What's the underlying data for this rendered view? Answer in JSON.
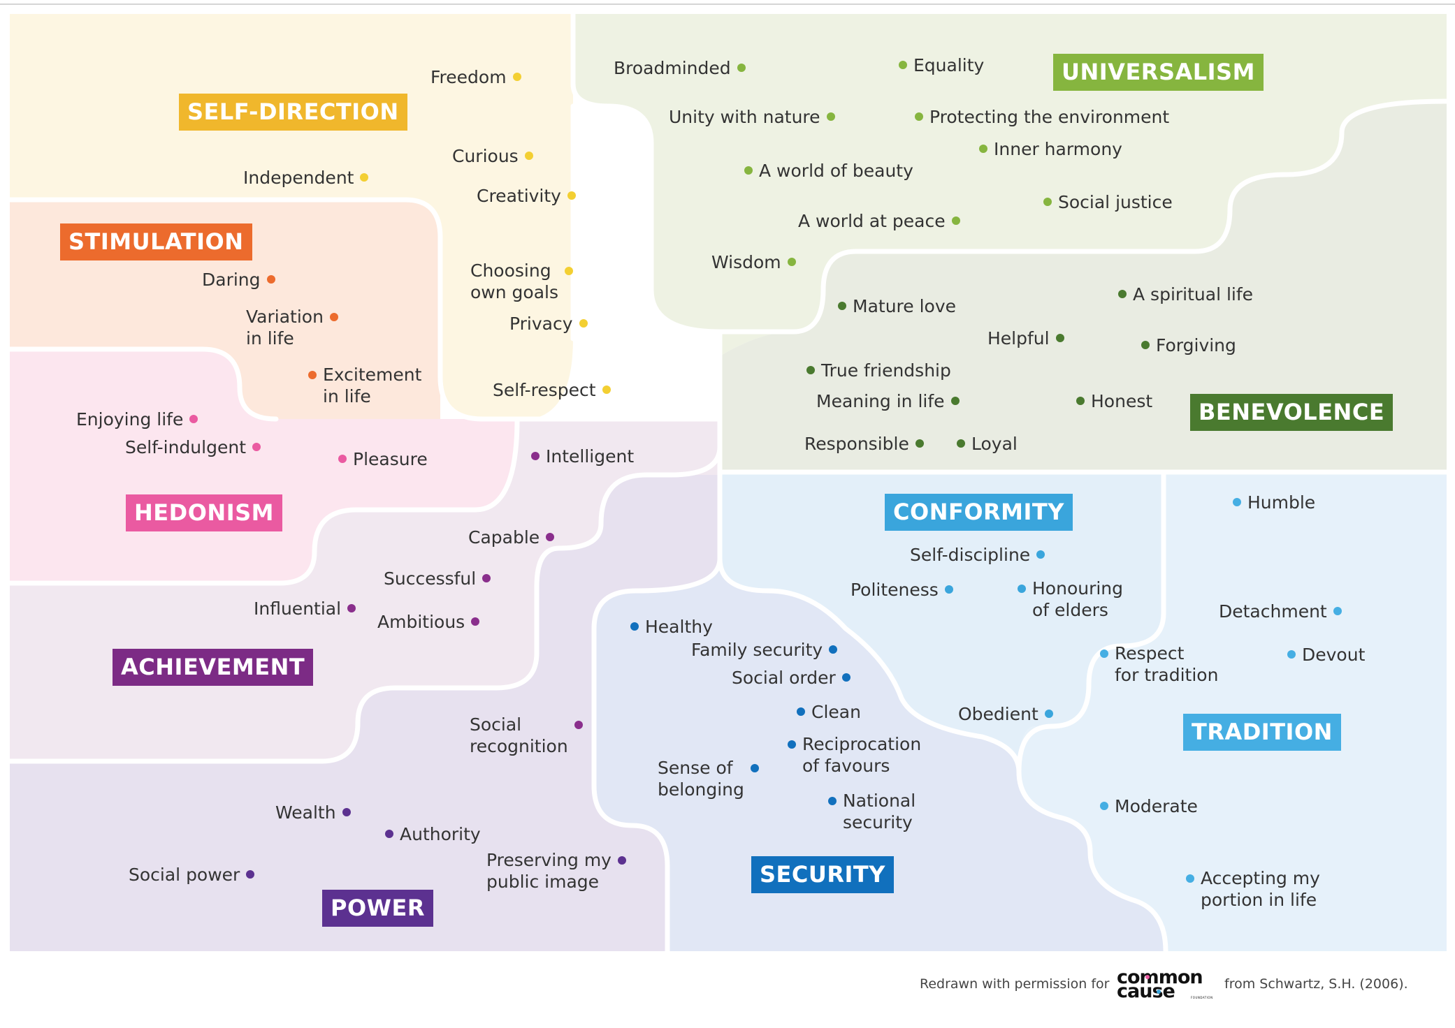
{
  "regions": [
    {
      "key": "self_direction",
      "label": "SELF-DIRECTION",
      "bg": "#fdf6e2",
      "badge": "#f0b72c",
      "dot": "#f3cf32",
      "items": [
        {
          "text": "Freedom"
        },
        {
          "text": "Independent"
        },
        {
          "text": "Curious"
        },
        {
          "text": "Creativity"
        },
        {
          "text": "Choosing\nown goals"
        },
        {
          "text": "Privacy"
        },
        {
          "text": "Self-respect"
        }
      ]
    },
    {
      "key": "stimulation",
      "label": "STIMULATION",
      "bg": "#fde8dc",
      "badge": "#ec6b2d",
      "dot": "#ec6b2d",
      "items": [
        {
          "text": "Daring"
        },
        {
          "text": "Variation\nin life"
        },
        {
          "text": "Excitement\nin life"
        }
      ]
    },
    {
      "key": "hedonism",
      "label": "HEDONISM",
      "bg": "#fce6ef",
      "badge": "#ea5aa1",
      "dot": "#ea5aa1",
      "items": [
        {
          "text": "Enjoying life"
        },
        {
          "text": "Self-indulgent"
        },
        {
          "text": "Pleasure"
        }
      ]
    },
    {
      "key": "achievement",
      "label": "ACHIEVEMENT",
      "bg": "#f1e8f0",
      "badge": "#7c2b85",
      "dot": "#8a2e8c",
      "items": [
        {
          "text": "Intelligent"
        },
        {
          "text": "Capable"
        },
        {
          "text": "Successful"
        },
        {
          "text": "Influential"
        },
        {
          "text": "Ambitious"
        },
        {
          "text": "Social\nrecognition"
        }
      ]
    },
    {
      "key": "power",
      "label": "POWER",
      "bg": "#e7e1ef",
      "badge": "#5c3190",
      "dot": "#5c3190",
      "items": [
        {
          "text": "Wealth"
        },
        {
          "text": "Authority"
        },
        {
          "text": "Preserving my\npublic image"
        },
        {
          "text": "Social power"
        }
      ]
    },
    {
      "key": "universalism",
      "label": "UNIVERSALISM",
      "bg": "#eef2e3",
      "badge": "#86b53f",
      "dot": "#86b53f",
      "items": [
        {
          "text": "Broadminded"
        },
        {
          "text": "Equality"
        },
        {
          "text": "Unity with nature"
        },
        {
          "text": "Protecting the environment"
        },
        {
          "text": "Inner harmony"
        },
        {
          "text": "A world of beauty"
        },
        {
          "text": "Social justice"
        },
        {
          "text": "A world at peace"
        },
        {
          "text": "Wisdom"
        }
      ]
    },
    {
      "key": "benevolence",
      "label": "BENEVOLENCE",
      "bg": "#e9ece2",
      "badge": "#4a7a2f",
      "dot": "#4a7a2f",
      "items": [
        {
          "text": "Mature love"
        },
        {
          "text": "A spiritual life"
        },
        {
          "text": "Helpful"
        },
        {
          "text": "Forgiving"
        },
        {
          "text": "True friendship"
        },
        {
          "text": "Meaning in life"
        },
        {
          "text": "Honest"
        },
        {
          "text": "Responsible"
        },
        {
          "text": "Loyal"
        }
      ]
    },
    {
      "key": "conformity",
      "label": "CONFORMITY",
      "bg": "#e3eff9",
      "badge": "#3aa5dc",
      "dot": "#3aa5dc",
      "items": [
        {
          "text": "Self-discipline"
        },
        {
          "text": "Politeness"
        },
        {
          "text": "Honouring\nof elders"
        },
        {
          "text": "Obedient"
        }
      ]
    },
    {
      "key": "tradition",
      "label": "TRADITION",
      "bg": "#e6f1fa",
      "badge": "#45aee3",
      "dot": "#45aee3",
      "items": [
        {
          "text": "Humble"
        },
        {
          "text": "Detachment"
        },
        {
          "text": "Respect\nfor tradition"
        },
        {
          "text": "Devout"
        },
        {
          "text": "Moderate"
        },
        {
          "text": "Accepting my\nportion in life"
        }
      ]
    },
    {
      "key": "security",
      "label": "SECURITY",
      "bg": "#e1e7f5",
      "badge": "#1170bd",
      "dot": "#1170bd",
      "items": [
        {
          "text": "Healthy"
        },
        {
          "text": "Family security"
        },
        {
          "text": "Social order"
        },
        {
          "text": "Clean"
        },
        {
          "text": "Reciprocation\nof favours"
        },
        {
          "text": "Sense of\nbelonging"
        },
        {
          "text": "National\nsecurity"
        }
      ]
    }
  ],
  "footer": {
    "credit_prefix": "Redrawn with permission for",
    "logo_line1": "common",
    "logo_line2": "cause",
    "logo_sub": "FOUNDATION",
    "credit_suffix": "from Schwartz, S.H. (2006).",
    "logo_dot_colors": [
      "#ea5aa1",
      "#3aa5dc"
    ]
  }
}
